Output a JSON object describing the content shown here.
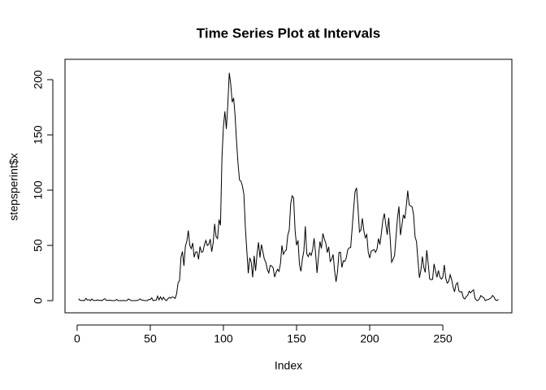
{
  "chart_data": {
    "type": "line",
    "title": "Time Series Plot at Intervals",
    "x_label": "Index",
    "y_label": "stepsperint$x",
    "color": "#000000",
    "xlim": [
      -8.3,
      297.2
    ],
    "xticks": [
      0,
      50,
      100,
      150,
      200,
      250
    ],
    "ylim": [
      -11,
      218.4
    ],
    "yticks": [
      0,
      50,
      100,
      150,
      200
    ],
    "values": [
      1.7,
      0.3,
      0.1,
      0.2,
      0.1,
      2.1,
      0.5,
      0.9,
      0,
      1.5,
      0.3,
      0.1,
      0.3,
      0.7,
      0.2,
      0.3,
      0,
      1.1,
      1.8,
      0.2,
      0.2,
      0.4,
      0.3,
      0,
      0,
      0,
      1.1,
      0,
      0,
      0.1,
      0,
      0.2,
      0,
      0,
      1.5,
      0.9,
      0,
      0,
      0,
      0,
      0.2,
      0.6,
      1.6,
      0.6,
      0.5,
      0.1,
      0,
      0,
      1.2,
      0.9,
      2.6,
      0,
      0.3,
      0.4,
      4.1,
      0.7,
      3.5,
      0.8,
      3.1,
      1.1,
      0,
      1.6,
      3,
      2.2,
      3.3,
      3,
      2.1,
      6.1,
      16,
      18.3,
      39.5,
      44.5,
      31.5,
      49.3,
      53.8,
      63.5,
      50,
      47.1,
      52.2,
      39.3,
      44,
      44.2,
      37.4,
      49,
      43.8,
      44.4,
      50.5,
      54.5,
      49.9,
      51,
      55.7,
      44.3,
      52.3,
      69.5,
      57.8,
      56.2,
      73.4,
      68.2,
      129.4,
      157.5,
      171.2,
      155.4,
      177.3,
      206.2,
      195.9,
      179.6,
      183.4,
      167,
      143.5,
      124,
      109.1,
      108.1,
      103.7,
      96,
      66.2,
      45.2,
      24.8,
      38.8,
      35,
      21.1,
      40.6,
      27,
      42.4,
      52.7,
      38.9,
      50.8,
      44.3,
      37.4,
      34.7,
      28.3,
      25.1,
      31.9,
      31.4,
      29.7,
      21.3,
      25.5,
      28.4,
      26.5,
      33.4,
      50,
      42,
      44.6,
      46,
      59.2,
      63.9,
      87.7,
      94.8,
      92.8,
      63.4,
      50.2,
      54.5,
      32.4,
      26.5,
      37.7,
      45.1,
      67.3,
      42.3,
      39.9,
      43.3,
      41,
      46.2,
      56.4,
      42.8,
      25.1,
      40,
      53.5,
      47.3,
      60.8,
      55.8,
      52,
      43.6,
      48.7,
      35.5,
      37.5,
      41.8,
      27.5,
      17.1,
      26.1,
      43.6,
      43.8,
      30,
      36.1,
      35.5,
      38.8,
      46,
      47.8,
      48.1,
      65.3,
      82.9,
      98.7,
      102.1,
      84,
      62.1,
      64.1,
      74.5,
      63.2,
      56.9,
      59.8,
      43.9,
      38.6,
      44.7,
      45.5,
      46.2,
      43.7,
      46.6,
      56.3,
      50.7,
      61.2,
      72.7,
      78.9,
      68.9,
      59.7,
      75.1,
      56.5,
      34.8,
      37.5,
      40.7,
      58,
      74.7,
      85.3,
      59.3,
      67.8,
      77.7,
      74.2,
      85.3,
      99.5,
      86.6,
      85.6,
      84.9,
      77.8,
      58,
      53.4,
      36.3,
      20.7,
      27.4,
      40,
      30.2,
      25.5,
      45.7,
      33.5,
      19.6,
      19,
      19.3,
      33.3,
      26.8,
      21.2,
      27.3,
      21.3,
      19.5,
      21.3,
      32.3,
      20.2,
      15.9,
      17.2,
      23.5,
      19.2,
      12.5,
      8,
      14.7,
      16.3,
      8.7,
      7.8,
      8.1,
      2.6,
      1.5,
      3.7,
      4.8,
      8.5,
      7.1,
      8.7,
      9.8,
      2.2,
      0.3,
      0.1,
      1.6,
      4.6,
      3.3,
      2.8,
      0,
      0.8,
      1,
      1.6,
      2.6,
      4.7,
      3.3,
      0.6,
      0.2,
      1.1
    ]
  }
}
